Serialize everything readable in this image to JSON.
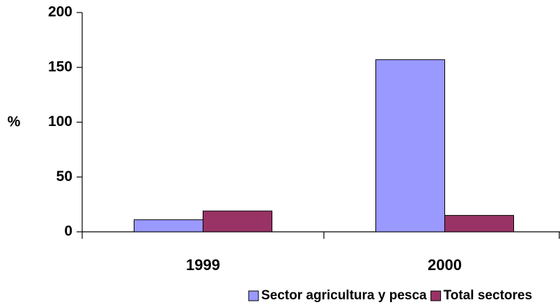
{
  "chart_data": {
    "type": "bar",
    "y_label": "%",
    "categories": [
      "1999",
      "2000"
    ],
    "series": [
      {
        "name": "Sector agricultura y pesca",
        "color": "#9999ff",
        "values": [
          11,
          157
        ]
      },
      {
        "name": "Total sectores",
        "color": "#993366",
        "values": [
          19,
          15
        ]
      }
    ],
    "ylim": [
      0,
      200
    ],
    "yticks": [
      0,
      50,
      100,
      150,
      200
    ],
    "grid": false,
    "legend": "bottom"
  }
}
